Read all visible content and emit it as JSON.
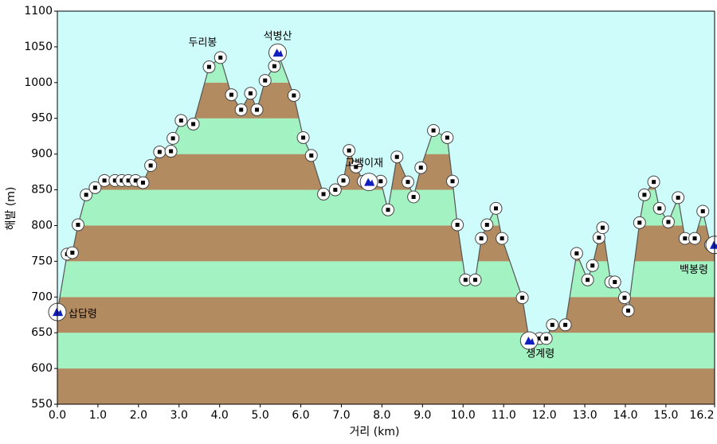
{
  "chart_data": {
    "type": "elevation-profile",
    "x_label": "거리   (km)",
    "y_label": "해발 (m)",
    "xlim": [
      0,
      16.2
    ],
    "ylim": [
      550,
      1100
    ],
    "xticks": [
      {
        "value": 0,
        "label": "0.0"
      },
      {
        "value": 1,
        "label": "1.0"
      },
      {
        "value": 2,
        "label": "2.0"
      },
      {
        "value": 3,
        "label": "3.0"
      },
      {
        "value": 4,
        "label": "4.0"
      },
      {
        "value": 5,
        "label": "5.0"
      },
      {
        "value": 6,
        "label": "6.0"
      },
      {
        "value": 7,
        "label": "7.0"
      },
      {
        "value": 8,
        "label": "8.0"
      },
      {
        "value": 9,
        "label": "9.0"
      },
      {
        "value": 10,
        "label": "10.0"
      },
      {
        "value": 11,
        "label": "11.0"
      },
      {
        "value": 12,
        "label": "12.0"
      },
      {
        "value": 13,
        "label": "13.0"
      },
      {
        "value": 14,
        "label": "14.0"
      },
      {
        "value": 15,
        "label": "15.0"
      },
      16.2
    ],
    "yticks": [
      550,
      600,
      650,
      700,
      750,
      800,
      850,
      900,
      950,
      1000,
      1050,
      1100
    ],
    "band_colors": [
      "#b38b60",
      "#a2f2c2"
    ],
    "sky_color": "#cdfcfa",
    "line_color": "#555555",
    "x": [
      0.0,
      0.24,
      0.37,
      0.51,
      0.71,
      0.93,
      1.16,
      1.42,
      1.59,
      1.75,
      1.93,
      2.11,
      2.3,
      2.52,
      2.8,
      2.85,
      3.05,
      3.35,
      3.74,
      4.02,
      4.29,
      4.53,
      4.76,
      4.92,
      5.12,
      5.35,
      5.43,
      5.83,
      6.06,
      6.26,
      6.56,
      6.85,
      7.05,
      7.19,
      7.36,
      7.54,
      7.68,
      7.97,
      8.15,
      8.37,
      8.64,
      8.78,
      8.96,
      9.27,
      9.61,
      9.74,
      9.86,
      10.06,
      10.3,
      10.45,
      10.59,
      10.81,
      10.96,
      11.46,
      11.63,
      11.89,
      12.05,
      12.2,
      12.52,
      12.8,
      13.07,
      13.19,
      13.35,
      13.44,
      13.64,
      13.74,
      13.98,
      14.07,
      14.35,
      14.47,
      14.7,
      14.84,
      15.06,
      15.3,
      15.47,
      15.71,
      15.91,
      16.1,
      16.2
    ],
    "values": [
      679,
      760,
      762,
      801,
      843,
      853,
      863,
      863,
      863,
      863,
      863,
      860,
      884,
      903,
      904,
      922,
      947,
      942,
      1022,
      1035,
      983,
      962,
      985,
      962,
      1003,
      1023,
      1042,
      982,
      923,
      898,
      844,
      850,
      863,
      905,
      882,
      862,
      861,
      862,
      822,
      896,
      861,
      840,
      881,
      933,
      923,
      862,
      801,
      724,
      724,
      782,
      801,
      824,
      782,
      699,
      639,
      642,
      642,
      661,
      661,
      761,
      724,
      744,
      783,
      797,
      721,
      721,
      699,
      681,
      804,
      843,
      861,
      824,
      805,
      839,
      782,
      782,
      820,
      773,
      773
    ],
    "annotations": [
      {
        "label": "삽답령",
        "x": 0.0,
        "y": 679,
        "icon": true
      },
      {
        "label": "두리봉",
        "x": 3.74,
        "y": 1022,
        "icon": false
      },
      {
        "label": "석병산",
        "x": 5.43,
        "y": 1042,
        "icon": true
      },
      {
        "label": "고뱅이재",
        "x": 7.68,
        "y": 861,
        "icon": true
      },
      {
        "label": "생계령",
        "x": 11.63,
        "y": 639,
        "icon": true
      },
      {
        "label": "백봉령",
        "x": 16.2,
        "y": 773,
        "icon": true
      }
    ]
  }
}
